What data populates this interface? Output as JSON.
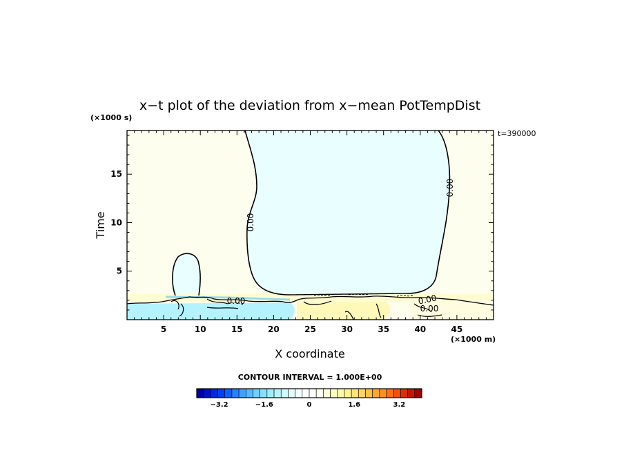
{
  "chart_data": {
    "type": "heatmap",
    "title": "x−t plot of the deviation from x−mean PotTempDist",
    "xlabel": "X coordinate",
    "ylabel": "Time",
    "x_unit": "(×1000 m)",
    "y_unit": "(×1000 s)",
    "xlim": [
      0,
      50
    ],
    "ylim": [
      0,
      19.5
    ],
    "x_ticks": [
      5,
      10,
      15,
      20,
      25,
      30,
      35,
      40,
      45
    ],
    "y_ticks": [
      5,
      10,
      15
    ],
    "time_note": "t=390000",
    "contour_interval_text": "CONTOUR INTERVAL = 1.000E+00",
    "contour_labels": [
      "0.00",
      "0.00",
      "0.00",
      "0.00",
      "0.00"
    ],
    "colorbar": {
      "range": [
        -4,
        4
      ],
      "tick_labels": [
        "−3.2",
        "−1.6",
        "0",
        "1.6",
        "3.2"
      ],
      "tick_values": [
        -3.2,
        -1.6,
        0,
        1.6,
        3.2
      ],
      "colors": [
        "#0000a0",
        "#0010c8",
        "#0028dc",
        "#0040ee",
        "#1060ff",
        "#2880ff",
        "#40a0ff",
        "#58b8ff",
        "#70d0ff",
        "#88e0ff",
        "#a0ecff",
        "#b8f4ff",
        "#d0faff",
        "#e4feff",
        "#f4ffff",
        "#ffffff",
        "#ffffff",
        "#fffff0",
        "#ffffdc",
        "#ffffc4",
        "#fffaa8",
        "#fff290",
        "#ffe478",
        "#ffd460",
        "#ffc048",
        "#ffa830",
        "#ff9020",
        "#ff7010",
        "#f05008",
        "#d83000",
        "#c01800",
        "#a00000"
      ]
    },
    "field_colors": {
      "negative": "#e8feff",
      "positive": "#fefeee",
      "band_positive": "#fffcd2",
      "band_negative": "#b4f2ff"
    }
  }
}
